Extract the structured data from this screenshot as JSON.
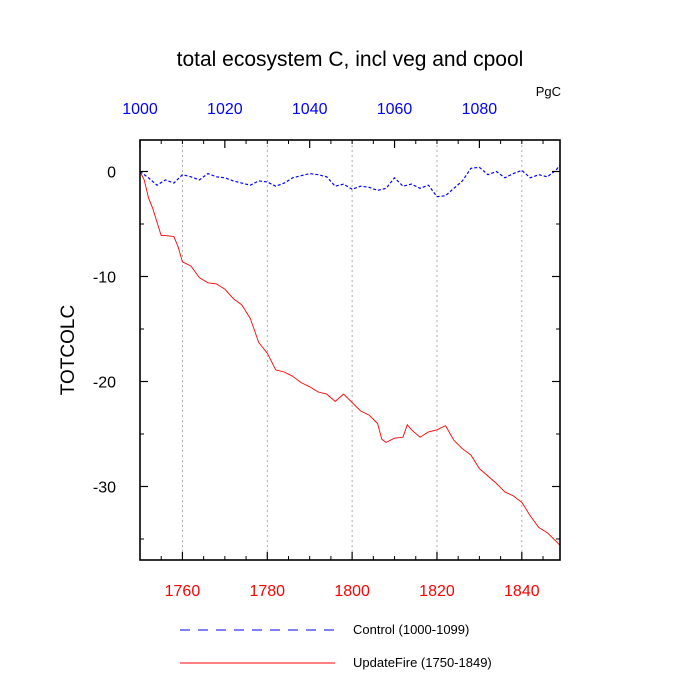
{
  "chart_data": {
    "type": "line",
    "title": "total ecosystem C, incl veg and cpool",
    "units": "PgC",
    "ylabel": "TOTCOLC",
    "ylim": [
      -37,
      3
    ],
    "grid": "dotted vertical lines at x ticks",
    "bottom_axis": {
      "range": [
        1750,
        1849
      ],
      "ticks": [
        "1760",
        "1780",
        "1800",
        "1820",
        "1840"
      ],
      "color": "#ff0000"
    },
    "top_axis": {
      "range": [
        1000,
        1099
      ],
      "ticks": [
        "1000",
        "1020",
        "1040",
        "1060",
        "1080"
      ],
      "color": "#0000ff"
    },
    "y_ticks": [
      "0",
      "-10",
      "-20",
      "-30"
    ],
    "legend_placement": "bottom",
    "series": [
      {
        "name": "Control (1000-1099)",
        "axis": "top",
        "color": "#0000ff",
        "style": "dashed",
        "x": [
          1000,
          1002,
          1004,
          1006,
          1008,
          1010,
          1012,
          1014,
          1016,
          1018,
          1020,
          1022,
          1024,
          1026,
          1028,
          1030,
          1032,
          1034,
          1036,
          1038,
          1040,
          1042,
          1044,
          1046,
          1048,
          1050,
          1052,
          1054,
          1056,
          1058,
          1060,
          1062,
          1064,
          1066,
          1068,
          1070,
          1072,
          1074,
          1076,
          1078,
          1080,
          1082,
          1084,
          1086,
          1088,
          1090,
          1092,
          1094,
          1096,
          1098,
          1099
        ],
        "y": [
          0,
          -0.6,
          -1.3,
          -0.8,
          -1.1,
          -0.3,
          -0.5,
          -0.8,
          -0.2,
          -0.5,
          -0.6,
          -0.9,
          -1.1,
          -1.3,
          -0.9,
          -1.0,
          -1.4,
          -1.1,
          -0.6,
          -0.4,
          -0.2,
          -0.3,
          -0.5,
          -1.4,
          -1.2,
          -1.7,
          -1.4,
          -1.5,
          -1.8,
          -1.6,
          -0.6,
          -1.4,
          -1.2,
          -1.6,
          -1.3,
          -2.4,
          -2.3,
          -1.6,
          -0.9,
          0.3,
          0.4,
          -0.3,
          0,
          -0.6,
          -0.2,
          0.1,
          -0.6,
          -0.3,
          -0.5,
          0.1,
          0.6
        ]
      },
      {
        "name": "UpdateFire (1750-1849)",
        "axis": "bottom",
        "color": "#ff0000",
        "style": "solid",
        "x": [
          1750,
          1751,
          1752,
          1753,
          1755,
          1756,
          1758,
          1759,
          1760,
          1762,
          1764,
          1766,
          1768,
          1770,
          1772,
          1774,
          1776,
          1778,
          1780,
          1782,
          1784,
          1786,
          1788,
          1790,
          1792,
          1794,
          1796,
          1798,
          1800,
          1802,
          1804,
          1806,
          1807,
          1808,
          1810,
          1812,
          1813,
          1814,
          1816,
          1818,
          1820,
          1822,
          1824,
          1826,
          1828,
          1830,
          1832,
          1834,
          1836,
          1838,
          1840,
          1842,
          1844,
          1846,
          1848,
          1849
        ],
        "y": [
          0,
          -0.8,
          -2.5,
          -3.5,
          -6.1,
          -6.1,
          -6.2,
          -7.2,
          -8.6,
          -9.0,
          -10.1,
          -10.6,
          -10.7,
          -11.2,
          -12.1,
          -12.7,
          -14.0,
          -16.3,
          -17.3,
          -18.9,
          -19.1,
          -19.5,
          -20.1,
          -20.5,
          -21.0,
          -21.2,
          -21.9,
          -21.2,
          -22.0,
          -22.8,
          -23.2,
          -24.0,
          -25.5,
          -25.8,
          -25.4,
          -25.3,
          -24.1,
          -24.6,
          -25.3,
          -24.8,
          -24.6,
          -24.2,
          -25.6,
          -26.4,
          -27.0,
          -28.3,
          -29.0,
          -29.7,
          -30.5,
          -30.9,
          -31.5,
          -32.8,
          -33.9,
          -34.4,
          -35.2,
          -35.6
        ]
      }
    ]
  }
}
